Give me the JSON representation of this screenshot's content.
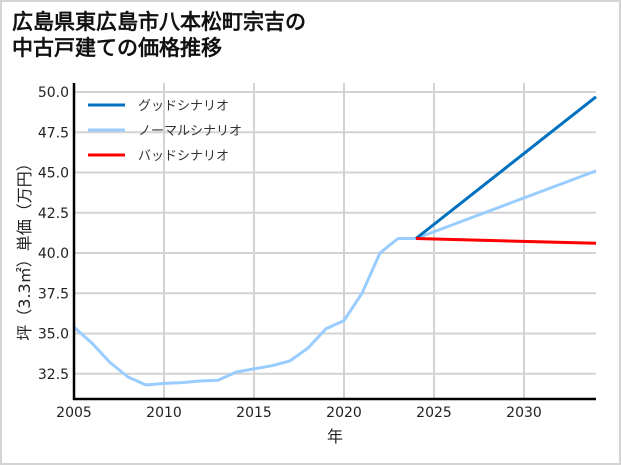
{
  "title_line1": "広島県東広島市八本松町宗吉の",
  "title_line2": "中古戸建ての価格推移",
  "chart_data": {
    "type": "line",
    "title": "広島県東広島市八本松町宗吉の中古戸建ての価格推移",
    "xlabel": "年",
    "ylabel": "坪（3.3㎡）単価（万円）",
    "xlim": [
      2005,
      2034
    ],
    "ylim": [
      31.0,
      50.5
    ],
    "xticks": [
      2005,
      2010,
      2015,
      2020,
      2025,
      2030
    ],
    "yticks": [
      32.5,
      35.0,
      37.5,
      40.0,
      42.5,
      45.0,
      47.5,
      50.0
    ],
    "grid": true,
    "legend_position": "upper left",
    "series": [
      {
        "name": "ノーマルシナリオ",
        "color": "#99ccff",
        "x": [
          2005,
          2006,
          2007,
          2008,
          2009,
          2010,
          2011,
          2012,
          2013,
          2014,
          2015,
          2016,
          2017,
          2018,
          2019,
          2020,
          2021,
          2022,
          2023,
          2024,
          2034
        ],
        "values": [
          35.4,
          34.4,
          33.2,
          32.3,
          31.8,
          31.9,
          31.95,
          32.05,
          32.1,
          32.6,
          32.8,
          33.0,
          33.3,
          34.1,
          35.3,
          35.8,
          37.5,
          40.0,
          40.9,
          40.9,
          45.1
        ]
      },
      {
        "name": "グッドシナリオ",
        "color": "#0070c0",
        "x": [
          2024,
          2034
        ],
        "values": [
          40.9,
          49.7
        ]
      },
      {
        "name": "バッドシナリオ",
        "color": "#ff0000",
        "x": [
          2024,
          2034
        ],
        "values": [
          40.9,
          40.6
        ]
      }
    ]
  },
  "legend": [
    {
      "label": "グッドシナリオ",
      "color": "#0070c0"
    },
    {
      "label": "ノーマルシナリオ",
      "color": "#99ccff"
    },
    {
      "label": "バッドシナリオ",
      "color": "#ff0000"
    }
  ]
}
